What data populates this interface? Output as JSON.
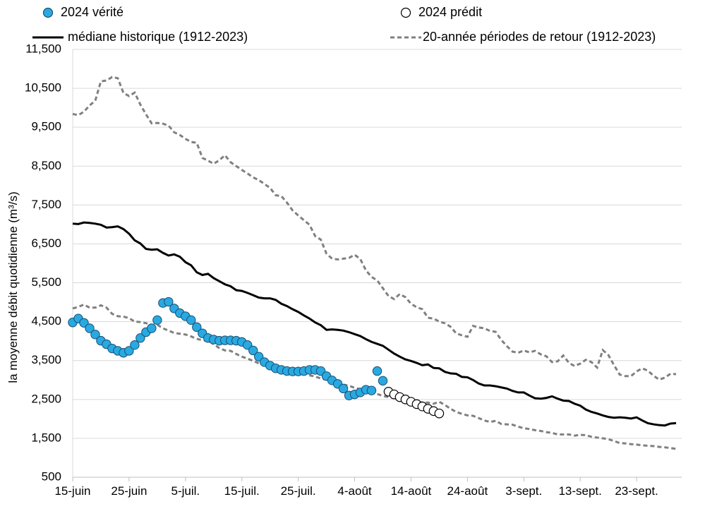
{
  "chart_data": {
    "type": "line",
    "ylabel": "la moyenne débit quotidienne (m³/s)",
    "ylim": [
      500,
      11500
    ],
    "yticks": [
      "11,500",
      "10,500",
      "9,500",
      "8,500",
      "7,500",
      "6,500",
      "5,500",
      "4,500",
      "3,500",
      "2,500",
      "1,500",
      "500"
    ],
    "ytick_values": [
      11500,
      10500,
      9500,
      8500,
      7500,
      6500,
      5500,
      4500,
      3500,
      2500,
      1500,
      500
    ],
    "xlim": [
      0,
      108
    ],
    "xticks": [
      "15-juin",
      "25-juin",
      "5-juil.",
      "15-juil.",
      "25-juil.",
      "4-août",
      "14-août",
      "24-août",
      "3-sept.",
      "13-sept.",
      "23-sept."
    ],
    "xtick_days": [
      0,
      10,
      20,
      30,
      40,
      50,
      60,
      70,
      80,
      90,
      100
    ],
    "grid": "horizontal",
    "legend": {
      "observed": "2024 vérité",
      "predicted": "2024 prédit",
      "median": "médiane historique (1912-2023)",
      "return": "20-année périodes de retour (1912-2023)"
    },
    "colors": {
      "observed_fill": "#29a9e1",
      "observed_edge": "#1b4f72",
      "predicted_fill": "#ffffff",
      "predicted_edge": "#000000",
      "median": "#000000",
      "return": "#808080",
      "grid": "#d9d9d9"
    },
    "observed": [
      [
        0,
        4480
      ],
      [
        1,
        4580
      ],
      [
        2,
        4470
      ],
      [
        3,
        4330
      ],
      [
        4,
        4170
      ],
      [
        5,
        4010
      ],
      [
        6,
        3920
      ],
      [
        7,
        3810
      ],
      [
        8,
        3750
      ],
      [
        9,
        3700
      ],
      [
        10,
        3750
      ],
      [
        11,
        3900
      ],
      [
        12,
        4080
      ],
      [
        13,
        4230
      ],
      [
        14,
        4330
      ],
      [
        15,
        4540
      ],
      [
        16,
        4980
      ],
      [
        17,
        5010
      ],
      [
        18,
        4840
      ],
      [
        19,
        4720
      ],
      [
        20,
        4640
      ],
      [
        21,
        4540
      ],
      [
        22,
        4360
      ],
      [
        23,
        4200
      ],
      [
        24,
        4080
      ],
      [
        25,
        4040
      ],
      [
        26,
        4010
      ],
      [
        27,
        4020
      ],
      [
        28,
        4020
      ],
      [
        29,
        4010
      ],
      [
        30,
        3980
      ],
      [
        31,
        3900
      ],
      [
        32,
        3760
      ],
      [
        33,
        3600
      ],
      [
        34,
        3460
      ],
      [
        35,
        3370
      ],
      [
        36,
        3300
      ],
      [
        37,
        3260
      ],
      [
        38,
        3230
      ],
      [
        39,
        3220
      ],
      [
        40,
        3220
      ],
      [
        41,
        3230
      ],
      [
        42,
        3260
      ],
      [
        43,
        3260
      ],
      [
        44,
        3230
      ],
      [
        45,
        3100
      ],
      [
        46,
        2990
      ],
      [
        47,
        2900
      ],
      [
        48,
        2780
      ],
      [
        49,
        2600
      ],
      [
        50,
        2630
      ],
      [
        51,
        2680
      ],
      [
        52,
        2750
      ],
      [
        53,
        2730
      ],
      [
        54,
        3230
      ],
      [
        55,
        2980
      ]
    ],
    "predicted": [
      [
        56,
        2700
      ],
      [
        57,
        2630
      ],
      [
        58,
        2560
      ],
      [
        59,
        2500
      ],
      [
        60,
        2440
      ],
      [
        61,
        2380
      ],
      [
        62,
        2320
      ],
      [
        63,
        2260
      ],
      [
        64,
        2200
      ],
      [
        65,
        2140
      ]
    ],
    "median": [
      [
        0,
        7020
      ],
      [
        1,
        7010
      ],
      [
        2,
        7050
      ],
      [
        3,
        7040
      ],
      [
        4,
        7020
      ],
      [
        5,
        6990
      ],
      [
        6,
        6920
      ],
      [
        7,
        6930
      ],
      [
        8,
        6950
      ],
      [
        9,
        6880
      ],
      [
        10,
        6760
      ],
      [
        11,
        6590
      ],
      [
        12,
        6510
      ],
      [
        13,
        6370
      ],
      [
        14,
        6350
      ],
      [
        15,
        6360
      ],
      [
        16,
        6270
      ],
      [
        17,
        6200
      ],
      [
        18,
        6230
      ],
      [
        19,
        6170
      ],
      [
        20,
        6030
      ],
      [
        21,
        5950
      ],
      [
        22,
        5770
      ],
      [
        23,
        5700
      ],
      [
        24,
        5730
      ],
      [
        25,
        5620
      ],
      [
        26,
        5540
      ],
      [
        27,
        5460
      ],
      [
        28,
        5410
      ],
      [
        29,
        5310
      ],
      [
        30,
        5290
      ],
      [
        31,
        5240
      ],
      [
        32,
        5180
      ],
      [
        33,
        5120
      ],
      [
        34,
        5100
      ],
      [
        35,
        5100
      ],
      [
        36,
        5060
      ],
      [
        37,
        4960
      ],
      [
        38,
        4900
      ],
      [
        39,
        4820
      ],
      [
        40,
        4750
      ],
      [
        41,
        4660
      ],
      [
        42,
        4580
      ],
      [
        43,
        4480
      ],
      [
        44,
        4410
      ],
      [
        45,
        4290
      ],
      [
        46,
        4300
      ],
      [
        47,
        4290
      ],
      [
        48,
        4270
      ],
      [
        49,
        4230
      ],
      [
        50,
        4180
      ],
      [
        51,
        4130
      ],
      [
        52,
        4050
      ],
      [
        53,
        3980
      ],
      [
        54,
        3930
      ],
      [
        55,
        3880
      ],
      [
        56,
        3780
      ],
      [
        57,
        3680
      ],
      [
        58,
        3600
      ],
      [
        59,
        3530
      ],
      [
        60,
        3490
      ],
      [
        61,
        3440
      ],
      [
        62,
        3380
      ],
      [
        63,
        3400
      ],
      [
        64,
        3310
      ],
      [
        65,
        3300
      ],
      [
        66,
        3210
      ],
      [
        67,
        3170
      ],
      [
        68,
        3160
      ],
      [
        69,
        3080
      ],
      [
        70,
        3070
      ],
      [
        71,
        3000
      ],
      [
        72,
        2910
      ],
      [
        73,
        2860
      ],
      [
        74,
        2860
      ],
      [
        75,
        2840
      ],
      [
        76,
        2810
      ],
      [
        77,
        2780
      ],
      [
        78,
        2720
      ],
      [
        79,
        2680
      ],
      [
        80,
        2680
      ],
      [
        81,
        2600
      ],
      [
        82,
        2530
      ],
      [
        83,
        2520
      ],
      [
        84,
        2540
      ],
      [
        85,
        2580
      ],
      [
        86,
        2520
      ],
      [
        87,
        2470
      ],
      [
        88,
        2460
      ],
      [
        89,
        2390
      ],
      [
        90,
        2340
      ],
      [
        91,
        2240
      ],
      [
        92,
        2180
      ],
      [
        93,
        2140
      ],
      [
        94,
        2090
      ],
      [
        95,
        2050
      ],
      [
        96,
        2030
      ],
      [
        97,
        2040
      ],
      [
        98,
        2030
      ],
      [
        99,
        2010
      ],
      [
        100,
        2040
      ],
      [
        101,
        1960
      ],
      [
        102,
        1890
      ],
      [
        103,
        1860
      ],
      [
        104,
        1840
      ],
      [
        105,
        1830
      ],
      [
        106,
        1880
      ],
      [
        107,
        1890
      ]
    ],
    "return_upper": [
      [
        0,
        9840
      ],
      [
        1,
        9810
      ],
      [
        2,
        9900
      ],
      [
        3,
        10060
      ],
      [
        4,
        10180
      ],
      [
        5,
        10680
      ],
      [
        6,
        10700
      ],
      [
        7,
        10790
      ],
      [
        8,
        10760
      ],
      [
        9,
        10380
      ],
      [
        10,
        10300
      ],
      [
        11,
        10390
      ],
      [
        12,
        10080
      ],
      [
        13,
        9830
      ],
      [
        14,
        9600
      ],
      [
        15,
        9610
      ],
      [
        16,
        9590
      ],
      [
        17,
        9540
      ],
      [
        18,
        9370
      ],
      [
        19,
        9300
      ],
      [
        20,
        9200
      ],
      [
        21,
        9120
      ],
      [
        22,
        9100
      ],
      [
        23,
        8710
      ],
      [
        24,
        8640
      ],
      [
        25,
        8560
      ],
      [
        26,
        8650
      ],
      [
        27,
        8780
      ],
      [
        28,
        8600
      ],
      [
        29,
        8500
      ],
      [
        30,
        8400
      ],
      [
        31,
        8310
      ],
      [
        32,
        8210
      ],
      [
        33,
        8140
      ],
      [
        34,
        8040
      ],
      [
        35,
        7940
      ],
      [
        36,
        7750
      ],
      [
        37,
        7730
      ],
      [
        38,
        7560
      ],
      [
        39,
        7360
      ],
      [
        40,
        7230
      ],
      [
        41,
        7110
      ],
      [
        42,
        6990
      ],
      [
        43,
        6700
      ],
      [
        44,
        6610
      ],
      [
        45,
        6250
      ],
      [
        46,
        6120
      ],
      [
        47,
        6100
      ],
      [
        48,
        6120
      ],
      [
        49,
        6140
      ],
      [
        50,
        6220
      ],
      [
        51,
        6110
      ],
      [
        52,
        5820
      ],
      [
        53,
        5650
      ],
      [
        54,
        5560
      ],
      [
        55,
        5360
      ],
      [
        56,
        5160
      ],
      [
        57,
        5080
      ],
      [
        58,
        5210
      ],
      [
        59,
        5130
      ],
      [
        60,
        4960
      ],
      [
        61,
        4870
      ],
      [
        62,
        4820
      ],
      [
        63,
        4600
      ],
      [
        64,
        4580
      ],
      [
        65,
        4500
      ],
      [
        66,
        4460
      ],
      [
        67,
        4370
      ],
      [
        68,
        4200
      ],
      [
        69,
        4150
      ],
      [
        70,
        4110
      ],
      [
        71,
        4390
      ],
      [
        72,
        4350
      ],
      [
        73,
        4330
      ],
      [
        74,
        4260
      ],
      [
        75,
        4240
      ],
      [
        76,
        4030
      ],
      [
        77,
        3870
      ],
      [
        78,
        3730
      ],
      [
        79,
        3700
      ],
      [
        80,
        3760
      ],
      [
        81,
        3710
      ],
      [
        82,
        3750
      ],
      [
        83,
        3660
      ],
      [
        84,
        3610
      ],
      [
        85,
        3460
      ],
      [
        86,
        3480
      ],
      [
        87,
        3630
      ],
      [
        88,
        3440
      ],
      [
        89,
        3360
      ],
      [
        90,
        3420
      ],
      [
        91,
        3520
      ],
      [
        92,
        3460
      ],
      [
        93,
        3320
      ],
      [
        94,
        3770
      ],
      [
        95,
        3640
      ],
      [
        96,
        3380
      ],
      [
        97,
        3140
      ],
      [
        98,
        3100
      ],
      [
        99,
        3100
      ],
      [
        100,
        3220
      ],
      [
        101,
        3300
      ],
      [
        102,
        3240
      ],
      [
        103,
        3110
      ],
      [
        104,
        3010
      ],
      [
        105,
        3060
      ],
      [
        106,
        3160
      ],
      [
        107,
        3150
      ]
    ],
    "return_lower": [
      [
        0,
        4840
      ],
      [
        1,
        4880
      ],
      [
        2,
        4940
      ],
      [
        3,
        4860
      ],
      [
        4,
        4860
      ],
      [
        5,
        4920
      ],
      [
        6,
        4860
      ],
      [
        7,
        4700
      ],
      [
        8,
        4640
      ],
      [
        9,
        4630
      ],
      [
        10,
        4590
      ],
      [
        11,
        4500
      ],
      [
        12,
        4490
      ],
      [
        13,
        4460
      ],
      [
        14,
        4420
      ],
      [
        15,
        4420
      ],
      [
        16,
        4330
      ],
      [
        17,
        4270
      ],
      [
        18,
        4210
      ],
      [
        19,
        4190
      ],
      [
        20,
        4170
      ],
      [
        21,
        4120
      ],
      [
        22,
        4060
      ],
      [
        23,
        4020
      ],
      [
        24,
        4020
      ],
      [
        25,
        3920
      ],
      [
        26,
        3820
      ],
      [
        27,
        3760
      ],
      [
        28,
        3750
      ],
      [
        29,
        3670
      ],
      [
        30,
        3600
      ],
      [
        31,
        3550
      ],
      [
        32,
        3490
      ],
      [
        33,
        3430
      ],
      [
        34,
        3380
      ],
      [
        35,
        3330
      ],
      [
        36,
        3290
      ],
      [
        37,
        3250
      ],
      [
        38,
        3230
      ],
      [
        39,
        3210
      ],
      [
        40,
        3200
      ],
      [
        41,
        3170
      ],
      [
        42,
        3120
      ],
      [
        43,
        3090
      ],
      [
        44,
        3040
      ],
      [
        45,
        3010
      ],
      [
        46,
        2970
      ],
      [
        47,
        2920
      ],
      [
        48,
        2880
      ],
      [
        49,
        2850
      ],
      [
        50,
        2800
      ],
      [
        51,
        2760
      ],
      [
        52,
        2720
      ],
      [
        53,
        2690
      ],
      [
        54,
        2640
      ],
      [
        55,
        2590
      ],
      [
        56,
        2560
      ],
      [
        57,
        2540
      ],
      [
        58,
        2510
      ],
      [
        59,
        2480
      ],
      [
        60,
        2460
      ],
      [
        61,
        2440
      ],
      [
        62,
        2420
      ],
      [
        63,
        2420
      ],
      [
        64,
        2390
      ],
      [
        65,
        2440
      ],
      [
        66,
        2360
      ],
      [
        67,
        2260
      ],
      [
        68,
        2180
      ],
      [
        69,
        2130
      ],
      [
        70,
        2090
      ],
      [
        71,
        2080
      ],
      [
        72,
        2020
      ],
      [
        73,
        1960
      ],
      [
        74,
        1920
      ],
      [
        75,
        1950
      ],
      [
        76,
        1870
      ],
      [
        77,
        1860
      ],
      [
        78,
        1850
      ],
      [
        79,
        1800
      ],
      [
        80,
        1760
      ],
      [
        81,
        1740
      ],
      [
        82,
        1710
      ],
      [
        83,
        1690
      ],
      [
        84,
        1660
      ],
      [
        85,
        1640
      ],
      [
        86,
        1600
      ],
      [
        87,
        1600
      ],
      [
        88,
        1600
      ],
      [
        89,
        1570
      ],
      [
        90,
        1590
      ],
      [
        91,
        1580
      ],
      [
        92,
        1540
      ],
      [
        93,
        1520
      ],
      [
        94,
        1500
      ],
      [
        95,
        1480
      ],
      [
        96,
        1430
      ],
      [
        97,
        1380
      ],
      [
        98,
        1370
      ],
      [
        99,
        1350
      ],
      [
        100,
        1340
      ],
      [
        101,
        1320
      ],
      [
        102,
        1310
      ],
      [
        103,
        1300
      ],
      [
        104,
        1280
      ],
      [
        105,
        1270
      ],
      [
        106,
        1250
      ],
      [
        107,
        1230
      ]
    ]
  }
}
